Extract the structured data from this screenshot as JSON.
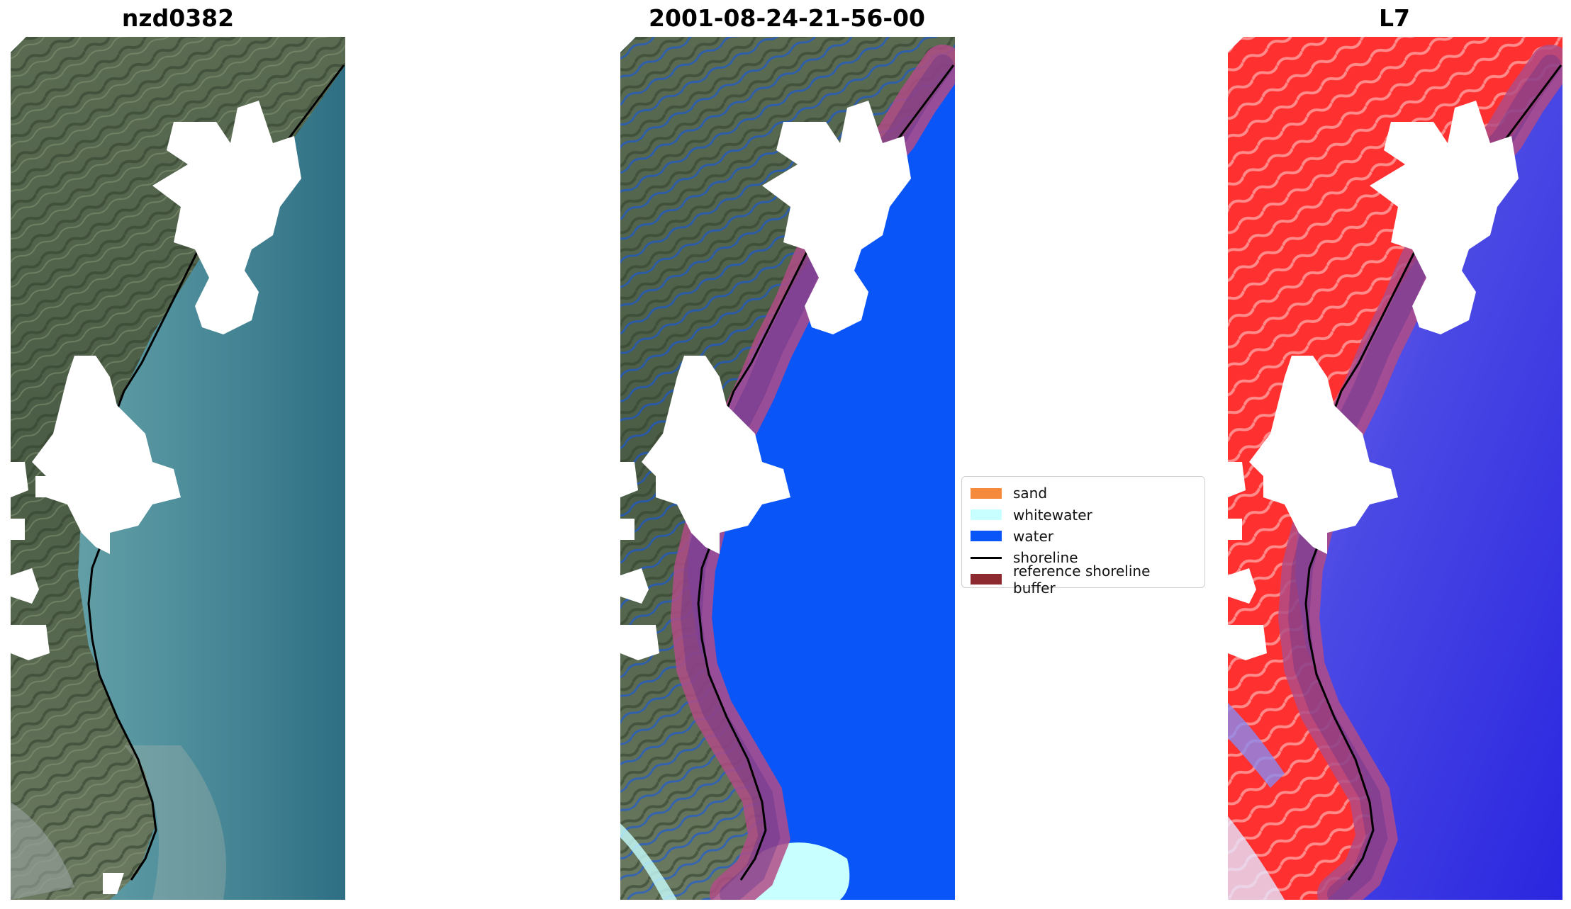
{
  "panels": [
    {
      "title": "nzd0382"
    },
    {
      "title": "2001-08-24-21-56-00"
    },
    {
      "title": "L7"
    }
  ],
  "legend": {
    "items": [
      {
        "label": "sand",
        "color": "#f58a3c",
        "kind": "patch"
      },
      {
        "label": "whitewater",
        "color": "#c8ffff",
        "kind": "patch"
      },
      {
        "label": "water",
        "color": "#0a55f8",
        "kind": "patch"
      },
      {
        "label": "shoreline",
        "color": "#000000",
        "kind": "line"
      },
      {
        "label": "reference shoreline buffer",
        "color": "#8c2a2f",
        "kind": "patch"
      }
    ]
  },
  "colors": {
    "land_green": "#4e6048",
    "sea_teal": "#4f8f9c",
    "water_class": "#0a55f8",
    "ndwi_land": "#ff3030",
    "ndwi_water": "#3030e8",
    "buffer": "#b04c86",
    "cloud": "#ffffff"
  }
}
